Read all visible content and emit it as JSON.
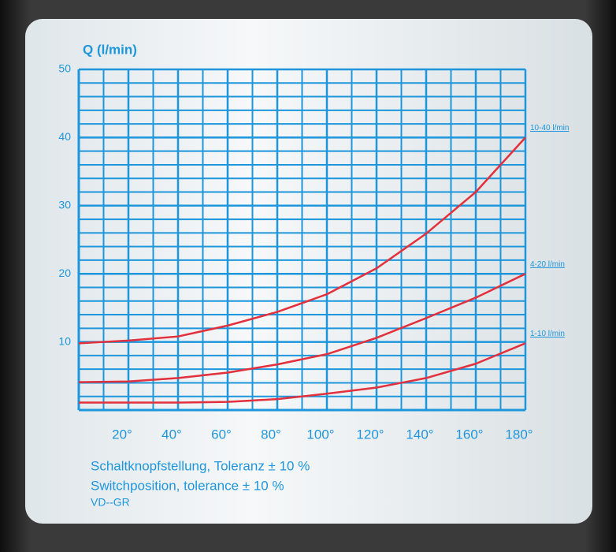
{
  "chart_data": {
    "type": "line",
    "title": "Q (l/min)",
    "x": [
      0,
      20,
      40,
      60,
      80,
      100,
      120,
      140,
      160,
      180
    ],
    "series": [
      {
        "name": "10-40 l/min",
        "color": "#e2303c",
        "values": [
          9.8,
          10.2,
          10.8,
          12.4,
          14.4,
          17,
          20.8,
          25.9,
          32,
          40
        ]
      },
      {
        "name": "4-20 l/min",
        "color": "#e2303c",
        "values": [
          4.1,
          4.2,
          4.7,
          5.5,
          6.7,
          8.2,
          10.6,
          13.5,
          16.5,
          20
        ]
      },
      {
        "name": "1-10 l/min",
        "color": "#e2303c",
        "values": [
          1.1,
          1.1,
          1.1,
          1.2,
          1.6,
          2.4,
          3.3,
          4.7,
          6.8,
          9.8
        ]
      }
    ],
    "xlim": [
      0,
      180
    ],
    "xticks": [
      {
        "value": 20,
        "label": "20°"
      },
      {
        "value": 40,
        "label": "40°"
      },
      {
        "value": 60,
        "label": "60°"
      },
      {
        "value": 80,
        "label": "80°"
      },
      {
        "value": 100,
        "label": "100°"
      },
      {
        "value": 120,
        "label": "120°"
      },
      {
        "value": 140,
        "label": "140°"
      },
      {
        "value": 160,
        "label": "160°"
      },
      {
        "value": 180,
        "label": "180°"
      }
    ],
    "ylim": [
      0,
      50
    ],
    "yticks": [
      10,
      20,
      30,
      40,
      50
    ],
    "grid": true,
    "grid_color": "#1e96dc",
    "annotations": [
      "Schaltknopfstellung, Toleranz ± 10 %",
      "Switchposition, tolerance ± 10 %",
      "VD--GR"
    ]
  }
}
